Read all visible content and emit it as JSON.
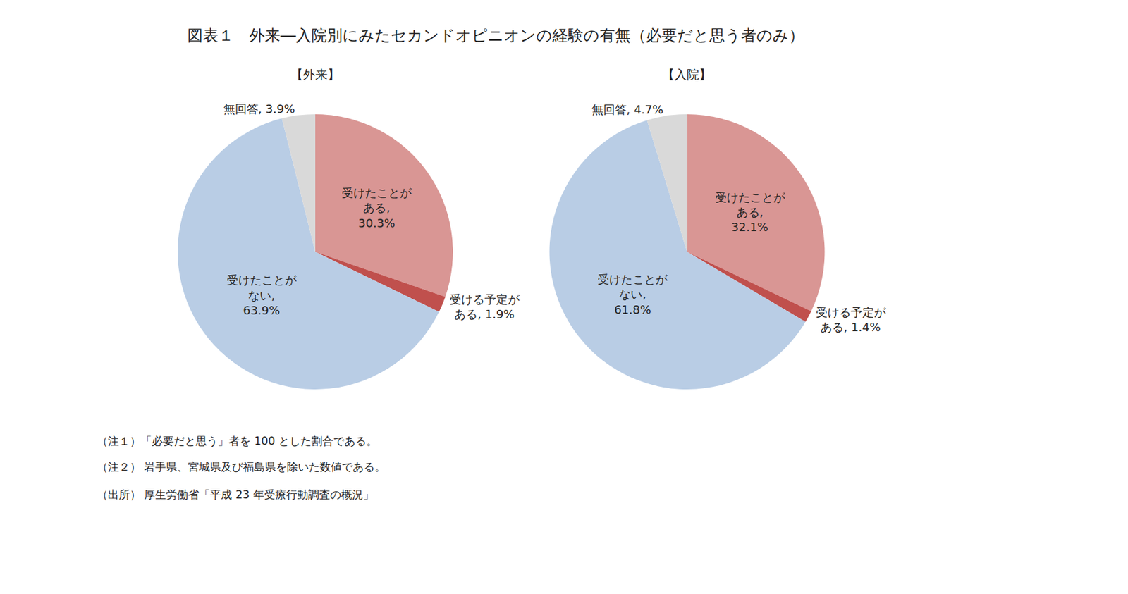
{
  "title": "図表１　外来―入院別にみたセカンドオピニオンの経験の有無（必要だと思う者のみ）",
  "notes": [
    "（注１）「必要だと思う」者を 100 とした割合である。",
    "（注２） 岩手県、宮城県及び福島県を除いた数値である。",
    "（出所） 厚生労働省「平成 23 年受療行動調査の概況」"
  ],
  "chart_data": [
    {
      "type": "pie",
      "title": "【外来】",
      "categories": [
        "受けたことがある",
        "受ける予定がある",
        "受けたことがない",
        "無回答"
      ],
      "values": [
        30.3,
        1.9,
        63.9,
        3.9
      ],
      "value_labels": [
        "受けたことが\nある,\n30.3%",
        "受ける予定が\nある, 1.9%",
        "受けたことが\nない,\n63.9%",
        "無回答, 3.9%"
      ],
      "colors": [
        "#D99694",
        "#C0504D",
        "#B9CDE5",
        "#D9D9D9"
      ],
      "data_labels": true
    },
    {
      "type": "pie",
      "title": "【入院】",
      "categories": [
        "受けたことがある",
        "受ける予定がある",
        "受けたことがない",
        "無回答"
      ],
      "values": [
        32.1,
        1.4,
        61.8,
        4.7
      ],
      "value_labels": [
        "受けたことが\nある,\n32.1%",
        "受ける予定が\nある, 1.4%",
        "受けたことが\nない,\n61.8%",
        "無回答, 4.7%"
      ],
      "colors": [
        "#D99694",
        "#C0504D",
        "#B9CDE5",
        "#D9D9D9"
      ],
      "data_labels": true
    }
  ]
}
